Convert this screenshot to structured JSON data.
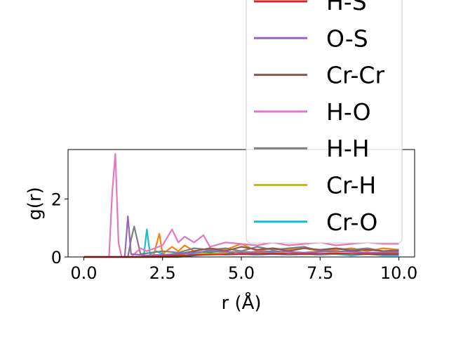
{
  "chart_data": {
    "type": "line",
    "xlabel": "r (Å)",
    "ylabel": "g(r)",
    "xlim": [
      -0.5,
      10.5
    ],
    "ylim": [
      0,
      3.7
    ],
    "xticks": [
      "0.0",
      "2.5",
      "5.0",
      "7.5",
      "10.0"
    ],
    "xtick_values": [
      0,
      2.5,
      5,
      7.5,
      10
    ],
    "yticks": [
      "0",
      "2"
    ],
    "ytick_values": [
      0,
      2
    ],
    "grid": false,
    "legend_position": "upper-right",
    "series": [
      {
        "name": "H-S",
        "color": "#d62728",
        "x": [
          0,
          2,
          3,
          4,
          5,
          6,
          7,
          8,
          9,
          10
        ],
        "y": [
          0,
          0,
          0.05,
          0.08,
          0.1,
          0.12,
          0.1,
          0.12,
          0.1,
          0.1
        ]
      },
      {
        "name": "O-S",
        "color": "#9467bd",
        "x": [
          0,
          1.3,
          1.4,
          1.5,
          2,
          3,
          4,
          5,
          6,
          7,
          8,
          9,
          10
        ],
        "y": [
          0,
          0,
          1.4,
          0.1,
          0.05,
          0.1,
          0.2,
          0.15,
          0.2,
          0.15,
          0.2,
          0.15,
          0.15
        ]
      },
      {
        "name": "Cr-Cr",
        "color": "#8c564b",
        "x": [
          0,
          2.5,
          3,
          3.5,
          4,
          4.5,
          5,
          5.5,
          6,
          6.5,
          7,
          7.5,
          8,
          8.5,
          9,
          9.5,
          10
        ],
        "y": [
          0,
          0,
          0.1,
          0.2,
          0.3,
          0.2,
          0.35,
          0.25,
          0.3,
          0.2,
          0.3,
          0.25,
          0.3,
          0.2,
          0.25,
          0.2,
          0.2
        ]
      },
      {
        "name": "H-O",
        "color": "#e377c2",
        "x": [
          0,
          0.8,
          0.9,
          1.0,
          1.1,
          1.2,
          1.5,
          1.8,
          2.0,
          2.5,
          2.8,
          3.0,
          3.2,
          3.5,
          3.8,
          4.0,
          4.5,
          5.0,
          5.5,
          6.0,
          6.5,
          7.0,
          7.5,
          8.0,
          8.5,
          9.0,
          9.5,
          10.0
        ],
        "y": [
          0,
          0,
          2.2,
          3.55,
          0.5,
          0,
          0,
          0.3,
          0.2,
          0.4,
          0.95,
          0.5,
          0.7,
          0.5,
          0.75,
          0.35,
          0.5,
          0.45,
          0.4,
          0.5,
          0.4,
          0.45,
          0.5,
          0.4,
          0.45,
          0.5,
          0.45,
          0.45
        ]
      },
      {
        "name": "H-H",
        "color": "#7f7f7f",
        "x": [
          0,
          1.4,
          1.5,
          1.6,
          1.8,
          2.5,
          3.0,
          3.5,
          4.0,
          4.5,
          5.0,
          5.5,
          6.0,
          6.5,
          7.0,
          7.5,
          8.0,
          8.5,
          9.0,
          9.5,
          10.0
        ],
        "y": [
          0,
          0,
          0.6,
          1.05,
          0.1,
          0.2,
          0.15,
          0.3,
          0.25,
          0.3,
          0.2,
          0.35,
          0.25,
          0.3,
          0.35,
          0.2,
          0.3,
          0.25,
          0.3,
          0.2,
          0.25
        ]
      },
      {
        "name": "Cr-H",
        "color": "#bcbd22",
        "x": [
          0,
          2.5,
          3,
          3.5,
          4,
          4.5,
          5,
          5.5,
          6,
          6.5,
          7,
          7.5,
          8,
          8.5,
          9,
          9.5,
          10
        ],
        "y": [
          0,
          0,
          0.1,
          0.15,
          0.1,
          0.15,
          0.2,
          0.15,
          0.2,
          0.1,
          0.15,
          0.2,
          0.15,
          0.1,
          0.15,
          0.1,
          0.1
        ]
      },
      {
        "name": "Cr-O",
        "color": "#17becf",
        "x": [
          0,
          1.9,
          2.0,
          2.1,
          2.3,
          2.6,
          3.0,
          3.5,
          4.0,
          4.5,
          5.0,
          5.5,
          6.0,
          6.5,
          7.0,
          7.5,
          8.0,
          8.5,
          9.0,
          9.5,
          10.0
        ],
        "y": [
          0,
          0,
          0.95,
          0.1,
          0.2,
          0.05,
          0.15,
          0.1,
          0.25,
          0.15,
          0.2,
          0.1,
          0.15,
          0.1,
          0.15,
          0.1,
          0.1,
          0.05,
          0.1,
          0.05,
          0.05
        ]
      },
      {
        "name": "",
        "color": "#ff7f0e",
        "x": [
          0,
          2.2,
          2.4,
          2.5,
          2.8,
          3.0,
          3.2,
          3.5,
          4.0,
          4.5,
          5.0,
          5.5,
          6.0,
          6.5,
          7.0,
          7.5,
          8.0,
          8.5,
          9.0,
          9.5,
          10.0
        ],
        "y": [
          0,
          0,
          0.8,
          0.1,
          0.35,
          0.2,
          0.4,
          0.2,
          0.3,
          0.25,
          0.45,
          0.2,
          0.3,
          0.25,
          0.3,
          0.2,
          0.25,
          0.3,
          0.2,
          0.3,
          0.25
        ]
      },
      {
        "name": "",
        "color": "#2ca02c",
        "x": [
          0,
          3.0,
          3.5,
          4.0,
          4.5,
          5.0,
          5.5,
          6.0,
          6.5,
          7.0,
          7.5,
          8.0,
          8.5,
          9.0,
          9.5,
          10.0
        ],
        "y": [
          0,
          0,
          0.1,
          0.15,
          0.1,
          0.2,
          0.1,
          0.15,
          0.1,
          0.15,
          0.1,
          0.12,
          0.1,
          0.12,
          0.1,
          0.1
        ]
      },
      {
        "name": "",
        "color": "#1f77b4",
        "x": [
          0,
          3.0,
          3.5,
          4.0,
          4.5,
          5.0,
          5.5,
          6.0,
          6.5,
          7.0,
          7.5,
          8.0,
          8.5,
          9.0,
          9.5,
          10.0
        ],
        "y": [
          0,
          0,
          0.05,
          0.1,
          0.08,
          0.1,
          0.08,
          0.1,
          0.08,
          0.1,
          0.08,
          0.1,
          0.08,
          0.1,
          0.08,
          0.08
        ]
      }
    ]
  }
}
